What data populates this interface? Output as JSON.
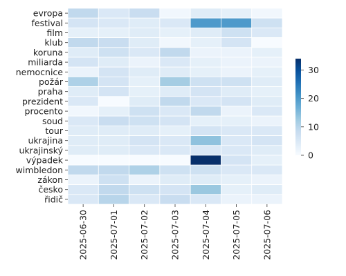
{
  "chart_data": {
    "type": "heatmap",
    "title": "",
    "xlabel": "",
    "ylabel": "",
    "x": [
      "2025-06-30",
      "2025-07-01",
      "2025-07-02",
      "2025-07-03",
      "2025-07-04",
      "2025-07-05",
      "2025-07-06"
    ],
    "y": [
      "evropa",
      "festival",
      "film",
      "klub",
      "koruna",
      "miliarda",
      "nemocnice",
      "požár",
      "praha",
      "prezident",
      "procento",
      "soud",
      "tour",
      "ukrajina",
      "ukrajinský",
      "výpadek",
      "wimbledon",
      "zákon",
      "česko",
      "řidič"
    ],
    "values": [
      [
        9,
        5,
        8,
        1,
        4,
        3,
        1
      ],
      [
        6,
        5,
        4,
        5,
        20,
        20,
        7
      ],
      [
        3,
        3,
        4,
        3,
        4,
        7,
        5
      ],
      [
        9,
        8,
        4,
        1,
        3,
        6,
        0
      ],
      [
        4,
        7,
        5,
        9,
        2,
        2,
        3
      ],
      [
        6,
        4,
        2,
        5,
        3,
        2,
        2
      ],
      [
        2,
        6,
        4,
        4,
        3,
        2,
        3
      ],
      [
        11,
        6,
        3,
        12,
        7,
        7,
        4
      ],
      [
        4,
        6,
        3,
        4,
        6,
        4,
        3
      ],
      [
        5,
        0,
        4,
        9,
        5,
        6,
        4
      ],
      [
        1,
        3,
        7,
        5,
        9,
        2,
        5
      ],
      [
        5,
        8,
        7,
        6,
        3,
        3,
        2
      ],
      [
        4,
        4,
        4,
        3,
        6,
        5,
        5
      ],
      [
        4,
        4,
        6,
        5,
        14,
        5,
        6
      ],
      [
        4,
        4,
        5,
        5,
        5,
        5,
        4
      ],
      [
        0,
        0,
        0,
        0,
        34,
        6,
        3
      ],
      [
        9,
        9,
        11,
        7,
        7,
        5,
        5
      ],
      [
        2,
        7,
        2,
        4,
        4,
        3,
        2
      ],
      [
        5,
        9,
        7,
        6,
        13,
        3,
        4
      ],
      [
        5,
        10,
        5,
        8,
        5,
        2,
        2
      ]
    ],
    "colorbar": {
      "min": 0,
      "max": 34,
      "ticks": [
        0,
        10,
        20,
        30
      ]
    },
    "colormap": "Blues",
    "cell_border_color": "#ffffff",
    "grid": false,
    "legend": "colorbar-right"
  }
}
